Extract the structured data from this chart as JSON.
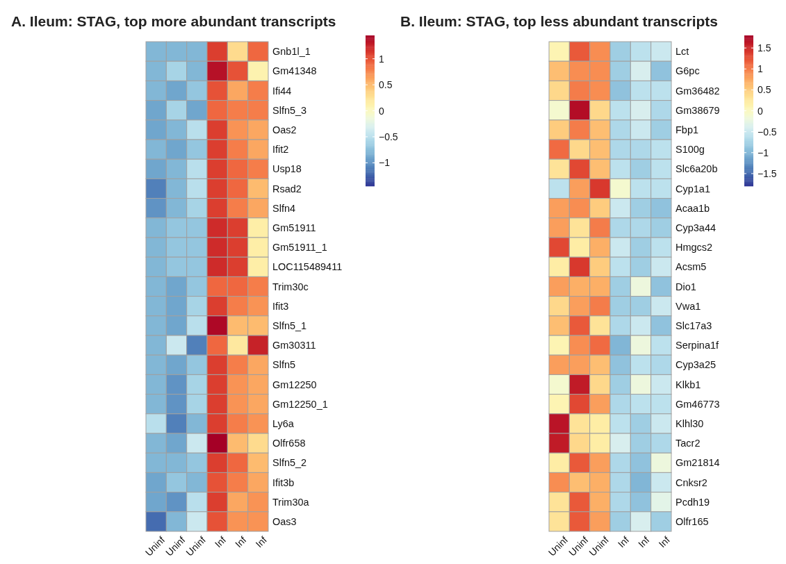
{
  "chart_data": [
    {
      "type": "heatmap",
      "title": "A. Ileum: STAG, top more abundant transcripts",
      "categories": [
        "Uninf",
        "Uninf",
        "Uninf",
        "Inf",
        "Inf",
        "Inf"
      ],
      "y_categories": [
        "Gnb1l_1",
        "Gm41348",
        "Ifi44",
        "Slfn5_3",
        "Oas2",
        "Ifit2",
        "Usp18",
        "Rsad2",
        "Slfn4",
        "Gm51911",
        "Gm51911_1",
        "LOC115489411",
        "Trim30c",
        "Ifit3",
        "Slfn5_1",
        "Gm30311",
        "Slfn5",
        "Gm12250",
        "Gm12250_1",
        "Ly6a",
        "Olfr658",
        "Slfn5_2",
        "Ifit3b",
        "Trim30a",
        "Oas3"
      ],
      "cells": [
        [
          -0.8,
          -0.8,
          -0.8,
          1.1,
          0.3,
          0.9
        ],
        [
          -0.8,
          -0.6,
          -0.8,
          1.35,
          1.0,
          0.1
        ],
        [
          -0.8,
          -0.9,
          -0.7,
          1.0,
          0.6,
          0.8
        ],
        [
          -0.9,
          -0.6,
          -0.9,
          0.9,
          0.8,
          0.8
        ],
        [
          -0.9,
          -0.8,
          -0.5,
          1.1,
          0.7,
          0.6
        ],
        [
          -0.8,
          -0.9,
          -0.7,
          1.1,
          0.8,
          0.6
        ],
        [
          -0.9,
          -0.8,
          -0.5,
          1.1,
          0.9,
          0.8
        ],
        [
          -1.1,
          -0.8,
          -0.5,
          1.1,
          0.9,
          0.5
        ],
        [
          -1.0,
          -0.8,
          -0.6,
          1.1,
          0.8,
          0.6
        ],
        [
          -0.8,
          -0.7,
          -0.7,
          1.2,
          1.1,
          0.15
        ],
        [
          -0.8,
          -0.7,
          -0.7,
          1.2,
          1.1,
          0.15
        ],
        [
          -0.8,
          -0.7,
          -0.7,
          1.2,
          1.1,
          0.15
        ],
        [
          -0.8,
          -0.9,
          -0.7,
          0.9,
          0.9,
          0.8
        ],
        [
          -0.8,
          -0.9,
          -0.6,
          1.1,
          0.8,
          0.7
        ],
        [
          -0.8,
          -0.9,
          -0.5,
          1.4,
          0.5,
          0.5
        ],
        [
          -0.8,
          -0.4,
          -1.1,
          0.9,
          0.2,
          1.25
        ],
        [
          -0.8,
          -0.9,
          -0.7,
          1.1,
          0.8,
          0.6
        ],
        [
          -0.8,
          -1.0,
          -0.6,
          1.1,
          0.7,
          0.6
        ],
        [
          -0.8,
          -1.0,
          -0.6,
          1.1,
          0.7,
          0.6
        ],
        [
          -0.5,
          -1.1,
          -0.8,
          1.1,
          0.8,
          0.7
        ],
        [
          -0.8,
          -0.9,
          -0.4,
          1.45,
          0.5,
          0.3
        ],
        [
          -0.8,
          -0.8,
          -0.7,
          1.1,
          0.9,
          0.5
        ],
        [
          -0.9,
          -0.7,
          -0.8,
          1.0,
          0.8,
          0.6
        ],
        [
          -0.9,
          -1.0,
          -0.5,
          1.1,
          0.6,
          0.7
        ],
        [
          -1.2,
          -0.8,
          -0.4,
          1.0,
          0.7,
          0.7
        ]
      ],
      "clim": [
        -1.45,
        1.45
      ],
      "cticks": [
        {
          "value": -1,
          "label": "−1"
        },
        {
          "value": -0.5,
          "label": "−0.5"
        },
        0,
        0.5,
        1
      ]
    },
    {
      "type": "heatmap",
      "title": "B. Ileum: STAG, top less abundant transcripts",
      "categories": [
        "Uninf",
        "Uninf",
        "Uninf",
        "Inf",
        "Inf",
        "Inf"
      ],
      "y_categories": [
        "Lct",
        "G6pc",
        "Gm36482",
        "Gm38679",
        "Fbp1",
        "S100g",
        "Slc6a20b",
        "Cyp1a1",
        "Acaa1b",
        "Cyp3a44",
        "Hmgcs2",
        "Acsm5",
        "Dio1",
        "Vwa1",
        "Slc17a3",
        "Serpina1f",
        "Cyp3a25",
        "Klkb1",
        "Gm46773",
        "Klhl30",
        "Tacr2",
        "Gm21814",
        "Cnksr2",
        "Pcdh19",
        "Olfr165"
      ],
      "cells": [
        [
          0.1,
          1.2,
          0.9,
          -0.8,
          -0.6,
          -0.5
        ],
        [
          0.6,
          0.9,
          0.9,
          -0.8,
          -0.4,
          -0.9
        ],
        [
          0.4,
          1.0,
          0.9,
          -0.9,
          -0.6,
          -0.6
        ],
        [
          -0.1,
          1.7,
          0.4,
          -0.6,
          -0.4,
          -0.7
        ],
        [
          0.5,
          1.0,
          0.6,
          -0.7,
          -0.5,
          -0.8
        ],
        [
          1.1,
          0.4,
          0.6,
          -0.7,
          -0.7,
          -0.6
        ],
        [
          0.3,
          1.3,
          0.6,
          -0.6,
          -0.8,
          -0.6
        ],
        [
          -0.6,
          0.8,
          1.4,
          -0.1,
          -0.6,
          -0.6
        ],
        [
          0.8,
          0.9,
          0.5,
          -0.5,
          -0.8,
          -0.9
        ],
        [
          0.8,
          0.3,
          1.0,
          -0.7,
          -0.7,
          -0.8
        ],
        [
          1.3,
          0.2,
          0.7,
          -0.5,
          -0.8,
          -0.6
        ],
        [
          0.2,
          1.4,
          0.5,
          -0.6,
          -0.8,
          -0.5
        ],
        [
          0.8,
          0.7,
          0.7,
          -0.8,
          -0.2,
          -0.9
        ],
        [
          0.4,
          0.8,
          1.0,
          -0.8,
          -0.8,
          -0.5
        ],
        [
          0.6,
          1.2,
          0.3,
          -0.7,
          -0.5,
          -0.9
        ],
        [
          0.1,
          0.9,
          1.1,
          -1.0,
          -0.2,
          -0.6
        ],
        [
          0.8,
          0.8,
          0.6,
          -0.9,
          -0.6,
          -0.7
        ],
        [
          -0.1,
          1.6,
          0.4,
          -0.8,
          -0.2,
          -0.5
        ],
        [
          0.1,
          1.3,
          0.8,
          -0.7,
          -0.6,
          -0.6
        ],
        [
          1.65,
          0.3,
          0.2,
          -0.6,
          -0.8,
          -0.5
        ],
        [
          1.6,
          0.4,
          0.2,
          -0.4,
          -0.8,
          -0.7
        ],
        [
          0.2,
          1.2,
          0.8,
          -0.7,
          -0.9,
          -0.2
        ],
        [
          0.9,
          0.6,
          0.7,
          -0.7,
          -1.0,
          -0.5
        ],
        [
          0.3,
          1.2,
          0.7,
          -0.7,
          -0.9,
          -0.3
        ],
        [
          0.3,
          1.2,
          0.8,
          -0.8,
          -0.4,
          -0.8
        ]
      ],
      "clim": [
        -1.8,
        1.8
      ],
      "cticks": [
        {
          "value": -1.5,
          "label": "−1.5"
        },
        {
          "value": -1,
          "label": "−1"
        },
        {
          "value": -0.5,
          "label": "−0.5"
        },
        0,
        0.5,
        1,
        1.5
      ]
    }
  ]
}
